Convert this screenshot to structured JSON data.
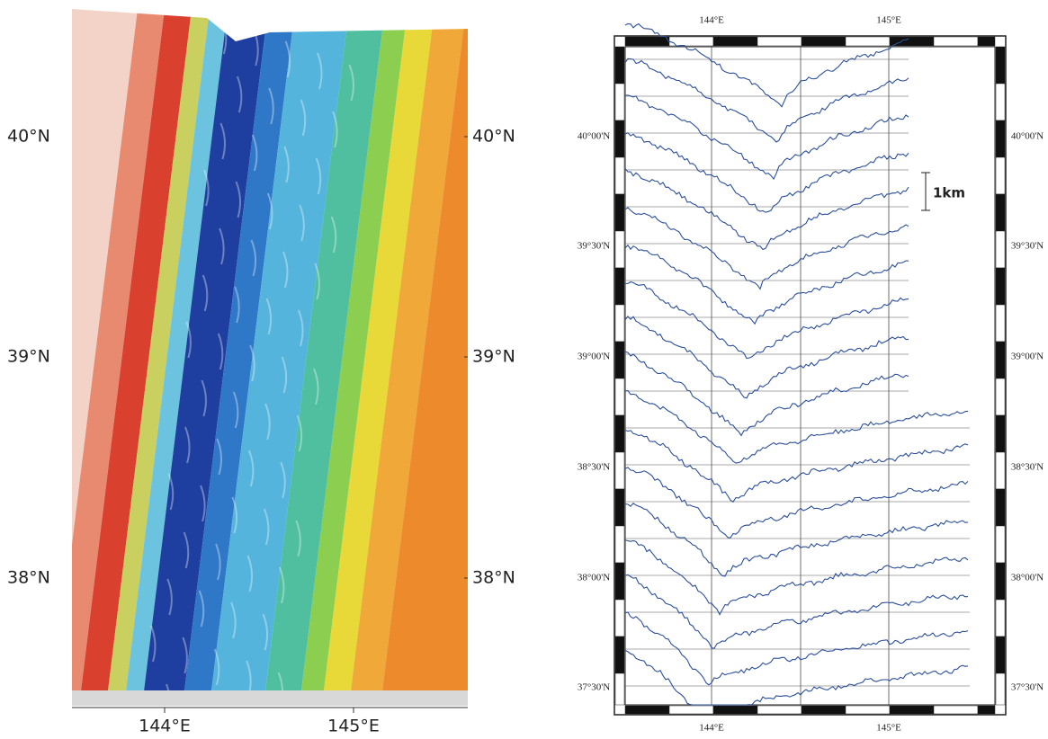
{
  "map": {
    "latitude_labels": [
      "40°N",
      "39°N",
      "38°N"
    ],
    "longitude_labels": [
      "144°E",
      "145°E"
    ]
  },
  "profiles": {
    "latitude_labels": [
      "40°00'N",
      "39°30'N",
      "39°00'N",
      "38°30'N",
      "38°00'N",
      "37°30'N"
    ],
    "longitude_labels": [
      "144°E",
      "145°E"
    ],
    "scale_label": "1km"
  }
}
